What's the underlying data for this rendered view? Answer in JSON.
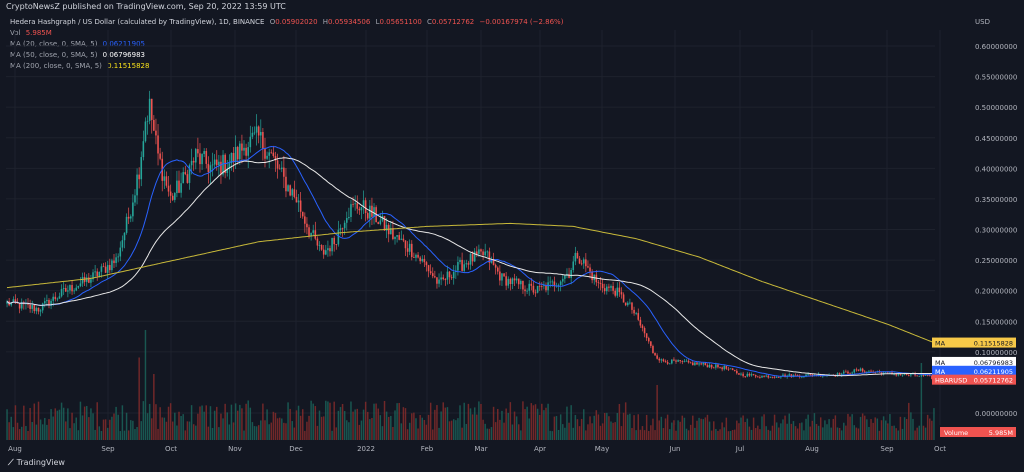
{
  "banner": "CryptoNewsZ published on TradingView.com, Sep 20, 2022 13:59 UTC",
  "legend": {
    "symbol": "Hedera Hashgraph / US Dollar (calculated by TradingView), 1D, BINANCE",
    "o_label": "O",
    "o": "0.05902020",
    "h_label": "H",
    "h": "0.05934506",
    "l_label": "L",
    "l": "0.05651100",
    "c_label": "C",
    "c": "0.05712762",
    "change": "−0.00167974 (−2.86%)",
    "vol_label": "Vol",
    "vol": "5.985M",
    "ma20_label": "MA (20, close, 0, SMA, 5)",
    "ma20": "0.06211905",
    "ma50_label": "MA (50, close, 0, SMA, 5)",
    "ma50": "0.06796983",
    "ma200_label": "MA (200, close, 0, SMA, 5)",
    "ma200": "0.11515828"
  },
  "logo_text": "TradingView",
  "colors": {
    "bg": "#131722",
    "up": "#26a69a",
    "down": "#ef5350",
    "ma20": "#2962ff",
    "ma50": "#e8e8e8",
    "ma200": "#c8b93a",
    "grid": "#1e222d"
  },
  "chart_data": {
    "type": "candlestick",
    "y_unit": "USD",
    "ylim": [
      0.0,
      0.62
    ],
    "yticks": [
      "0.60000000",
      "0.55000000",
      "0.50000000",
      "0.45000000",
      "0.40000000",
      "0.35000000",
      "0.30000000",
      "0.25000000",
      "0.20000000",
      "0.15000000",
      "0.10000000",
      "0.00000000"
    ],
    "ytick_values": [
      0.6,
      0.55,
      0.5,
      0.45,
      0.4,
      0.35,
      0.3,
      0.25,
      0.2,
      0.15,
      0.1,
      0.0
    ],
    "xticks": [
      "Aug",
      "Sep",
      "Oct",
      "Nov",
      "Dec",
      "2022",
      "Feb",
      "Mar",
      "Apr",
      "May",
      "Jun",
      "Jul",
      "Aug",
      "Sep",
      "Oct"
    ],
    "price_anchors": [
      {
        "d": 0,
        "p": 0.18
      },
      {
        "d": 15,
        "p": 0.17
      },
      {
        "d": 28,
        "p": 0.2
      },
      {
        "d": 40,
        "p": 0.22
      },
      {
        "d": 52,
        "p": 0.25
      },
      {
        "d": 58,
        "p": 0.32
      },
      {
        "d": 63,
        "p": 0.4
      },
      {
        "d": 66,
        "p": 0.48
      },
      {
        "d": 68,
        "p": 0.5
      },
      {
        "d": 72,
        "p": 0.42
      },
      {
        "d": 78,
        "p": 0.35
      },
      {
        "d": 84,
        "p": 0.38
      },
      {
        "d": 90,
        "p": 0.42
      },
      {
        "d": 98,
        "p": 0.4
      },
      {
        "d": 106,
        "p": 0.41
      },
      {
        "d": 114,
        "p": 0.44
      },
      {
        "d": 120,
        "p": 0.45
      },
      {
        "d": 126,
        "p": 0.42
      },
      {
        "d": 132,
        "p": 0.38
      },
      {
        "d": 138,
        "p": 0.35
      },
      {
        "d": 144,
        "p": 0.3
      },
      {
        "d": 150,
        "p": 0.26
      },
      {
        "d": 156,
        "p": 0.28
      },
      {
        "d": 162,
        "p": 0.33
      },
      {
        "d": 168,
        "p": 0.34
      },
      {
        "d": 176,
        "p": 0.32
      },
      {
        "d": 184,
        "p": 0.29
      },
      {
        "d": 192,
        "p": 0.27
      },
      {
        "d": 200,
        "p": 0.24
      },
      {
        "d": 206,
        "p": 0.21
      },
      {
        "d": 212,
        "p": 0.23
      },
      {
        "d": 220,
        "p": 0.25
      },
      {
        "d": 228,
        "p": 0.26
      },
      {
        "d": 236,
        "p": 0.22
      },
      {
        "d": 244,
        "p": 0.21
      },
      {
        "d": 252,
        "p": 0.2
      },
      {
        "d": 260,
        "p": 0.21
      },
      {
        "d": 268,
        "p": 0.23
      },
      {
        "d": 272,
        "p": 0.26
      },
      {
        "d": 276,
        "p": 0.24
      },
      {
        "d": 282,
        "p": 0.21
      },
      {
        "d": 290,
        "p": 0.2
      },
      {
        "d": 298,
        "p": 0.17
      },
      {
        "d": 304,
        "p": 0.13
      },
      {
        "d": 308,
        "p": 0.1
      },
      {
        "d": 312,
        "p": 0.085
      },
      {
        "d": 320,
        "p": 0.083
      },
      {
        "d": 330,
        "p": 0.08
      },
      {
        "d": 342,
        "p": 0.074
      },
      {
        "d": 350,
        "p": 0.063
      },
      {
        "d": 360,
        "p": 0.06
      },
      {
        "d": 372,
        "p": 0.061
      },
      {
        "d": 384,
        "p": 0.062
      },
      {
        "d": 396,
        "p": 0.063
      },
      {
        "d": 406,
        "p": 0.07
      },
      {
        "d": 414,
        "p": 0.067
      },
      {
        "d": 422,
        "p": 0.064
      },
      {
        "d": 430,
        "p": 0.062
      },
      {
        "d": 436,
        "p": 0.061
      },
      {
        "d": 442,
        "p": 0.057
      }
    ],
    "ma200_anchors": [
      {
        "d": 0,
        "p": 0.205
      },
      {
        "d": 40,
        "p": 0.22
      },
      {
        "d": 80,
        "p": 0.25
      },
      {
        "d": 120,
        "p": 0.28
      },
      {
        "d": 160,
        "p": 0.295
      },
      {
        "d": 200,
        "p": 0.305
      },
      {
        "d": 240,
        "p": 0.31
      },
      {
        "d": 270,
        "p": 0.305
      },
      {
        "d": 300,
        "p": 0.285
      },
      {
        "d": 330,
        "p": 0.255
      },
      {
        "d": 360,
        "p": 0.215
      },
      {
        "d": 390,
        "p": 0.18
      },
      {
        "d": 420,
        "p": 0.145
      },
      {
        "d": 442,
        "p": 0.115
      }
    ],
    "volume_spikes": [
      {
        "d": 63,
        "v": 0.75
      },
      {
        "d": 66,
        "v": 1.0
      },
      {
        "d": 70,
        "v": 0.6
      },
      {
        "d": 310,
        "v": 0.5
      },
      {
        "d": 436,
        "v": 0.7
      }
    ],
    "price_tags": [
      {
        "label": "MA",
        "value": "0.11515828",
        "color": "#f7c948",
        "text_color": "#131722",
        "price": 0.11515828
      },
      {
        "label": "MA",
        "value": "0.06796983",
        "color": "#ffffff",
        "text_color": "#131722",
        "price": 0.0835
      },
      {
        "label": "MA",
        "value": "0.06211905",
        "color": "#2962ff",
        "text_color": "#ffffff",
        "price": 0.069
      },
      {
        "label": "HBARUSD",
        "value": "0.05712762",
        "color": "#ef5350",
        "text_color": "#ffffff",
        "price": 0.0545
      }
    ],
    "volume_tag": {
      "label": "Volume",
      "value": "5.985M",
      "color": "#ef5350"
    }
  }
}
